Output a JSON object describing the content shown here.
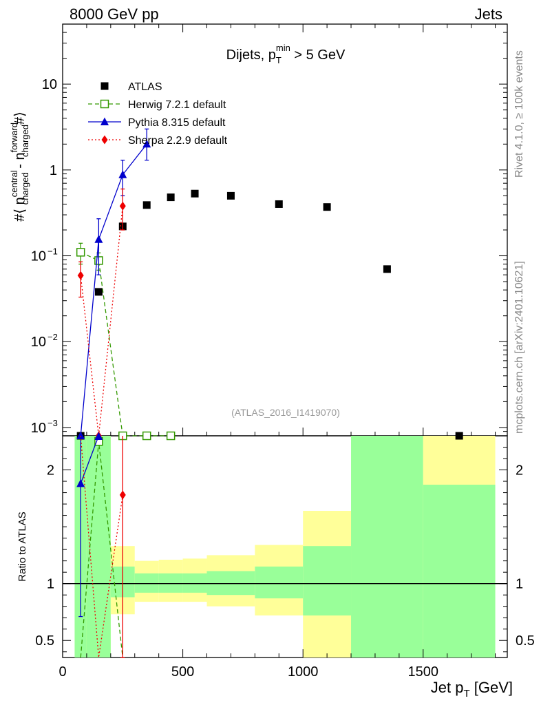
{
  "header": {
    "left": "8000 GeV pp",
    "right": "Jets",
    "side_top": "Rivet 4.1.0, ≥ 100k events",
    "side_bottom": "mcplots.cern.ch [arXiv:2401.10621]"
  },
  "colors": {
    "atlas": "#000000",
    "herwig": "#339900",
    "pythia": "#0000cc",
    "sherpa": "#ee0000",
    "band_inner": "#99ff99",
    "band_outer": "#ffff99",
    "watermark": "#999999"
  },
  "chart_data": [
    {
      "id": "main",
      "type": "scatter",
      "title": "Dijets, p_T^min > 5 GeV",
      "title_parts": {
        "prefix": "Dijets, p",
        "sub": "T",
        "sup": "min",
        "suffix": " > 5 GeV"
      },
      "ylabel": "#⟨ n_charged^central - n_charged^forward #⟩",
      "ylabel_parts": {
        "p1": "#⟨ n",
        "sup1": "central",
        "sub1": "charged",
        "p2": " - n",
        "sup2": "forward",
        "sub2": "charged",
        "p3": "#⟩"
      },
      "yscale": "log",
      "ylim": [
        0.0008,
        50
      ],
      "xlim": [
        0,
        1850
      ],
      "yticks": [
        {
          "value": 0.001,
          "base": "10",
          "exp": "−3"
        },
        {
          "value": 0.01,
          "base": "10",
          "exp": "−2"
        },
        {
          "value": 0.1,
          "base": "10",
          "exp": "−1"
        },
        {
          "value": 1,
          "label": "1"
        },
        {
          "value": 10,
          "label": "10"
        }
      ],
      "watermark": "(ATLAS_2016_I1419070)",
      "legend_position": "top-left",
      "series": [
        {
          "name": "ATLAS",
          "marker": "square-filled",
          "points": [
            {
              "x": 150,
              "y": 0.038
            },
            {
              "x": 250,
              "y": 0.22
            },
            {
              "x": 350,
              "y": 0.39
            },
            {
              "x": 450,
              "y": 0.48
            },
            {
              "x": 550,
              "y": 0.53
            },
            {
              "x": 700,
              "y": 0.5
            },
            {
              "x": 900,
              "y": 0.4
            },
            {
              "x": 1100,
              "y": 0.37
            },
            {
              "x": 1350,
              "y": 0.07
            }
          ],
          "offscale_x": [
            75,
            1650
          ]
        },
        {
          "name": "Herwig 7.2.1 default",
          "marker": "square-open",
          "line": "dashed",
          "points": [
            {
              "x": 75,
              "y": 0.11,
              "err": 0.03
            },
            {
              "x": 150,
              "y": 0.088,
              "err": 0.02
            }
          ],
          "offscale_x": [
            250,
            350,
            450
          ]
        },
        {
          "name": "Pythia 8.315 default",
          "marker": "triangle-filled",
          "line": "solid",
          "points": [
            {
              "x": 150,
              "y": 0.155,
              "lo": 0.06,
              "hi": 0.27
            },
            {
              "x": 250,
              "y": 0.88,
              "lo": 0.5,
              "hi": 1.3
            },
            {
              "x": 350,
              "y": 2.0,
              "lo": 1.3,
              "hi": 3.0
            }
          ],
          "offscale_x": [
            75
          ]
        },
        {
          "name": "Sherpa 2.2.9 default",
          "marker": "diamond-filled",
          "line": "dotted",
          "points": [
            {
              "x": 75,
              "y": 0.059,
              "lo": 0.033,
              "hi": 0.085
            },
            {
              "x": 250,
              "y": 0.38,
              "lo": 0.2,
              "hi": 0.6
            }
          ],
          "offscale_x": [
            150
          ]
        }
      ]
    },
    {
      "id": "ratio",
      "type": "line",
      "ylabel": "Ratio to ATLAS",
      "xlabel": "Jet p_T [GeV]",
      "xlabel_parts": {
        "main": "Jet p",
        "sub": "T",
        "unit": " [GeV]"
      },
      "ylim": [
        0.35,
        2.3
      ],
      "xlim": [
        0,
        1850
      ],
      "xticks": [
        0,
        500,
        1000,
        1500
      ],
      "yticks": [
        0.5,
        1,
        2
      ],
      "bands": [
        {
          "x0": 50,
          "x1": 100,
          "inner": [
            0.35,
            2.3
          ],
          "outer": [
            0.35,
            2.3
          ]
        },
        {
          "x0": 100,
          "x1": 200,
          "inner": [
            0.35,
            2.3
          ],
          "outer": [
            0.35,
            2.3
          ]
        },
        {
          "x0": 200,
          "x1": 300,
          "inner": [
            0.88,
            1.15
          ],
          "outer": [
            0.73,
            1.33
          ]
        },
        {
          "x0": 300,
          "x1": 400,
          "inner": [
            0.92,
            1.09
          ],
          "outer": [
            0.84,
            1.2
          ]
        },
        {
          "x0": 400,
          "x1": 500,
          "inner": [
            0.92,
            1.09
          ],
          "outer": [
            0.84,
            1.21
          ]
        },
        {
          "x0": 500,
          "x1": 600,
          "inner": [
            0.92,
            1.09
          ],
          "outer": [
            0.84,
            1.22
          ]
        },
        {
          "x0": 600,
          "x1": 800,
          "inner": [
            0.9,
            1.11
          ],
          "outer": [
            0.8,
            1.25
          ]
        },
        {
          "x0": 800,
          "x1": 1000,
          "inner": [
            0.87,
            1.15
          ],
          "outer": [
            0.72,
            1.34
          ]
        },
        {
          "x0": 1000,
          "x1": 1200,
          "inner": [
            0.72,
            1.33
          ],
          "outer": [
            0.35,
            1.64
          ]
        },
        {
          "x0": 1200,
          "x1": 1500,
          "inner": [
            0.35,
            2.3
          ],
          "outer": [
            0.35,
            2.3
          ]
        },
        {
          "x0": 1500,
          "x1": 1800,
          "inner": [
            0.35,
            1.87
          ],
          "outer": [
            0.35,
            2.3
          ]
        }
      ],
      "series": [
        {
          "name": "Herwig 7.2.1 default",
          "line": "dashed",
          "points": [
            {
              "x": 75,
              "y": 0.2
            },
            {
              "x": 150,
              "y": 2.25,
              "marker": "square-open"
            },
            {
              "x": 250,
              "y": 0.2
            }
          ]
        },
        {
          "name": "Pythia 8.315 default",
          "line": "solid",
          "points": [
            {
              "x": 75,
              "y": 1.88,
              "lo": 0.71,
              "hi": 2.3,
              "marker": "triangle-filled"
            },
            {
              "x": 150,
              "y": 2.3,
              "marker": "triangle-filled"
            }
          ]
        },
        {
          "name": "Sherpa 2.2.9 default",
          "line": "dotted",
          "points": [
            {
              "x": 75,
              "y": 2.3
            },
            {
              "x": 150,
              "y": 0.2
            },
            {
              "x": 250,
              "y": 1.78,
              "lo": 0.2,
              "hi": 2.3,
              "marker": "diamond-filled"
            }
          ]
        }
      ]
    }
  ]
}
